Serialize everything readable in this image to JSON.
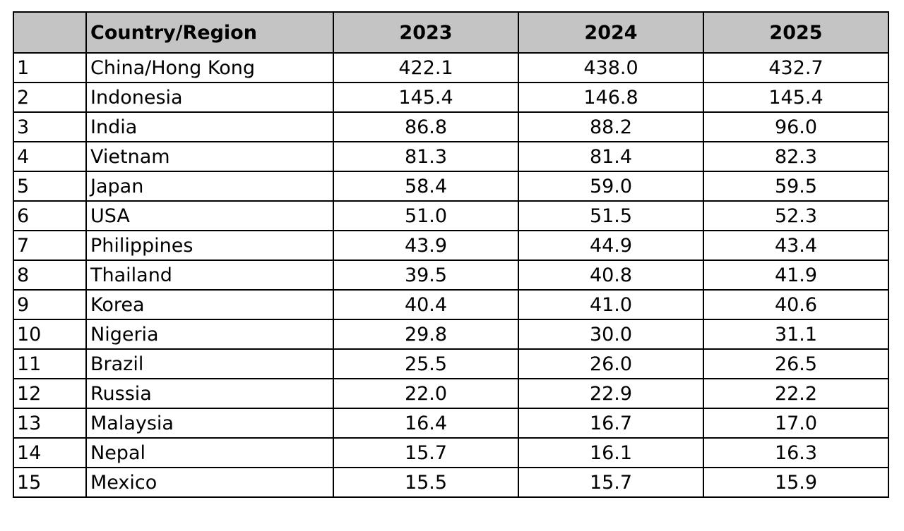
{
  "chart_data": {
    "type": "table",
    "headers": [
      "",
      "Country/Region",
      "2023",
      "2024",
      "2025"
    ],
    "rows": [
      [
        "1",
        "China/Hong Kong",
        "422.1",
        "438.0",
        "432.7"
      ],
      [
        "2",
        "Indonesia",
        "145.4",
        "146.8",
        "145.4"
      ],
      [
        "3",
        "India",
        "86.8",
        "88.2",
        "96.0"
      ],
      [
        "4",
        "Vietnam",
        "81.3",
        "81.4",
        "82.3"
      ],
      [
        "5",
        "Japan",
        "58.4",
        "59.0",
        "59.5"
      ],
      [
        "6",
        "USA",
        "51.0",
        "51.5",
        "52.3"
      ],
      [
        "7",
        "Philippines",
        "43.9",
        "44.9",
        "43.4"
      ],
      [
        "8",
        "Thailand",
        "39.5",
        "40.8",
        "41.9"
      ],
      [
        "9",
        "Korea",
        "40.4",
        "41.0",
        "40.6"
      ],
      [
        "10",
        "Nigeria",
        "29.8",
        "30.0",
        "31.1"
      ],
      [
        "11",
        "Brazil",
        "25.5",
        "26.0",
        "26.5"
      ],
      [
        "12",
        "Russia",
        "22.0",
        "22.9",
        "22.2"
      ],
      [
        "13",
        "Malaysia",
        "16.4",
        "16.7",
        "17.0"
      ],
      [
        "14",
        "Nepal",
        "15.7",
        "16.1",
        "16.3"
      ],
      [
        "15",
        "Mexico",
        "15.5",
        "15.7",
        "15.9"
      ]
    ]
  },
  "colors": {
    "header_background": "#c4c4c4",
    "grid_line": "#000000",
    "background": "#ffffff"
  }
}
